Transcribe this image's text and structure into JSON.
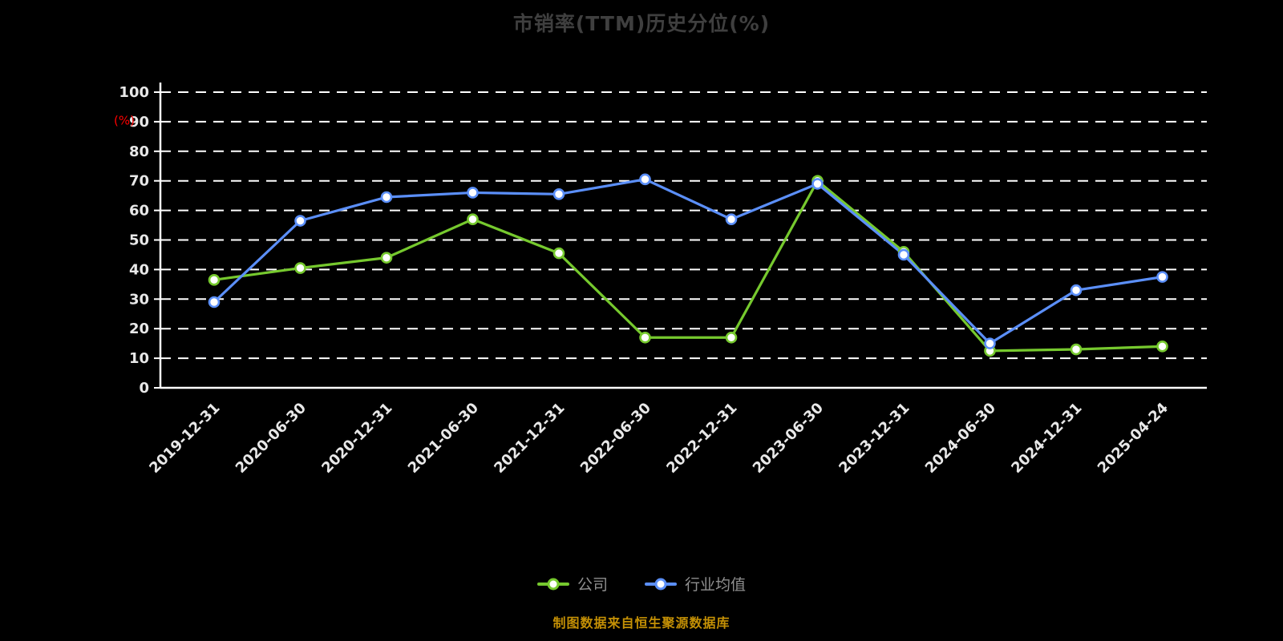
{
  "chart": {
    "title": "市销率(TTM)历史分位(%)",
    "y_axis_unit": "(%)",
    "footer": "制图数据来自恒生聚源数据库",
    "legend": [
      {
        "label": "公司",
        "color": "#76c92e"
      },
      {
        "label": "行业均值",
        "color": "#5b8ff9"
      }
    ]
  },
  "chart_data": {
    "type": "line",
    "title": "市销率(TTM)历史分位(%)",
    "xlabel": "",
    "ylabel": "(%)",
    "ylim": [
      0,
      100
    ],
    "ytick_step": 10,
    "grid": "horizontal-dashed",
    "legend_position": "bottom",
    "categories": [
      "2019-12-31",
      "2020-06-30",
      "2020-12-31",
      "2021-06-30",
      "2021-12-31",
      "2022-06-30",
      "2022-12-31",
      "2023-06-30",
      "2023-12-31",
      "2024-06-30",
      "2024-12-31",
      "2025-04-24"
    ],
    "series": [
      {
        "name": "公司",
        "color": "#76c92e",
        "values": [
          36.5,
          40.5,
          44,
          57,
          45.5,
          17,
          17,
          70,
          46,
          12.5,
          13,
          14
        ]
      },
      {
        "name": "行业均值",
        "color": "#5b8ff9",
        "values": [
          29,
          56.5,
          64.5,
          66,
          65.5,
          70.5,
          57,
          69,
          45,
          15,
          33,
          37.5
        ]
      }
    ]
  },
  "style": {
    "background": "#000000",
    "grid_color": "#ffffff",
    "axis_color": "#ffffff",
    "tick_label_color": "#e8e8e8",
    "unit_label_color": "#ff0000",
    "title_color": "#3f3f3f",
    "footer_color": "#c49005",
    "legend_text_color": "#8f8f8f"
  }
}
